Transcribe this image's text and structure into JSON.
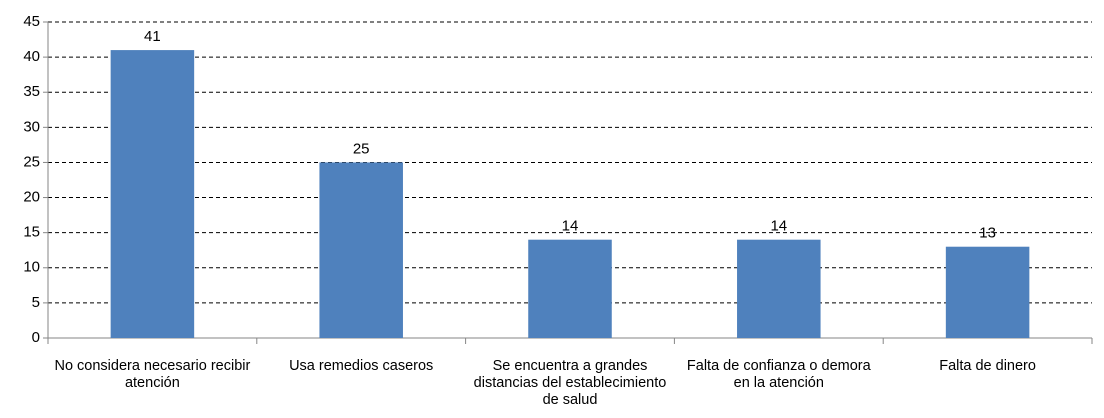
{
  "chart_data": {
    "type": "bar",
    "categories": [
      "No considera necesario recibir atención",
      "Usa remedios caseros",
      "Se encuentra a grandes distancias del establecimiento de salud",
      "Falta de confianza o demora en la atención",
      "Falta de dinero"
    ],
    "values": [
      41,
      25,
      14,
      14,
      13
    ],
    "color": "#4f81bd",
    "ylim": [
      0,
      45
    ],
    "yticks": [
      0,
      5,
      10,
      15,
      20,
      25,
      30,
      35,
      40,
      45
    ],
    "grid": true,
    "data_labels": true
  }
}
